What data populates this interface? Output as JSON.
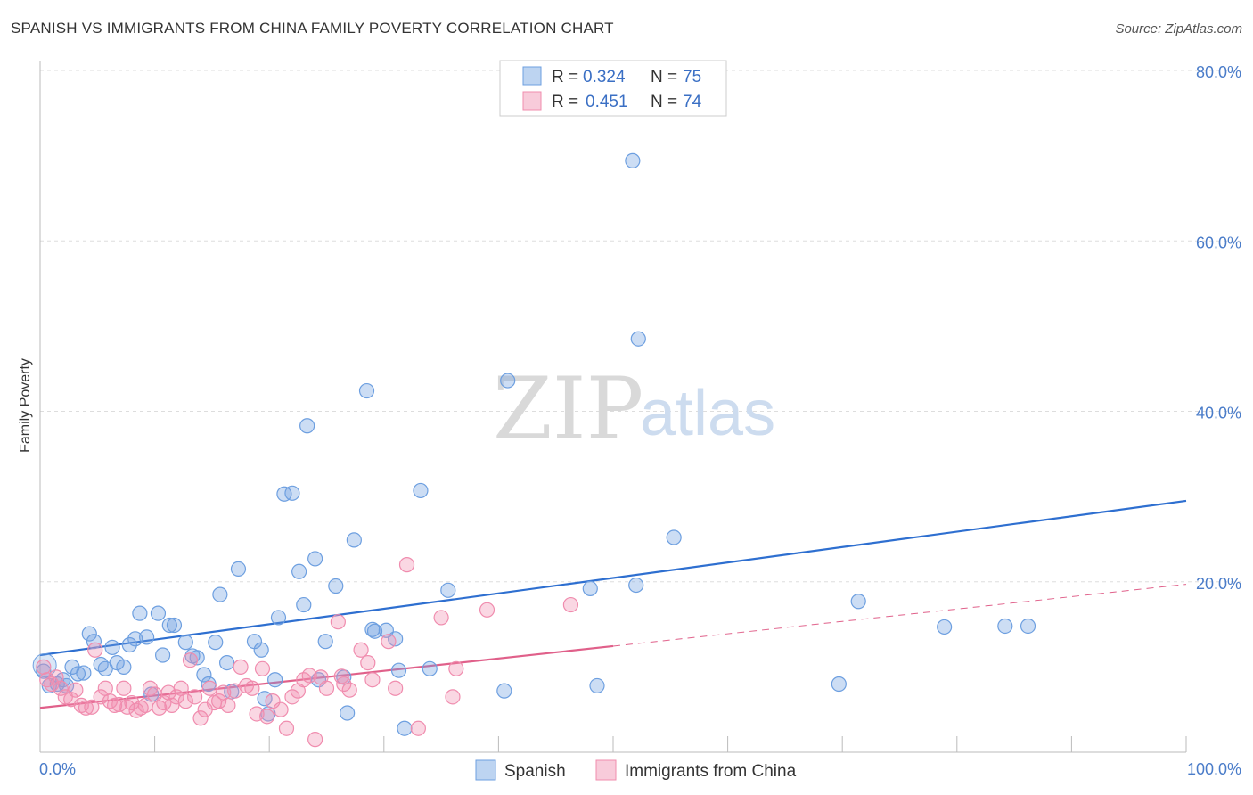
{
  "title": "SPANISH VS IMMIGRANTS FROM CHINA FAMILY POVERTY CORRELATION CHART",
  "source": "Source: ZipAtlas.com",
  "watermark": {
    "zip": "ZIP",
    "atlas": "atlas"
  },
  "colors": {
    "spanish": "#6d9fe0",
    "spanish_line": "#2e6fd0",
    "china": "#f08cae",
    "china_line": "#e0608a",
    "grid": "#dddddd"
  },
  "legend": {
    "r_label": "R =",
    "n_label": "N =",
    "rows": [
      {
        "r": "0.324",
        "n": "75",
        "series": "spanish"
      },
      {
        "r": "0.451",
        "n": "74",
        "series": "china"
      }
    ]
  },
  "chart_data": {
    "type": "scatter",
    "title": "SPANISH VS IMMIGRANTS FROM CHINA FAMILY POVERTY CORRELATION CHART",
    "xlabel": "",
    "ylabel": "Family Poverty",
    "xlim": [
      0,
      100
    ],
    "ylim": [
      0,
      80
    ],
    "x_tick_labels": [
      "0.0%",
      "100.0%"
    ],
    "y_tick_values": [
      20,
      40,
      60,
      80
    ],
    "y_tick_labels": [
      "20.0%",
      "40.0%",
      "60.0%",
      "80.0%"
    ],
    "legend_position": "bottom-center",
    "series": [
      {
        "name": "Spanish",
        "color": "#6d9fe0",
        "trend": {
          "x": [
            0,
            100
          ],
          "y": [
            11.4,
            29.5
          ],
          "dashed_from": null
        },
        "points": [
          [
            0.3,
            9.5
          ],
          [
            0.8,
            7.8
          ],
          [
            1.5,
            8.0
          ],
          [
            2.0,
            8.5
          ],
          [
            2.3,
            7.8
          ],
          [
            2.8,
            10.0
          ],
          [
            3.3,
            9.2
          ],
          [
            3.8,
            9.3
          ],
          [
            4.3,
            13.9
          ],
          [
            4.7,
            13.0
          ],
          [
            5.3,
            10.3
          ],
          [
            5.7,
            9.8
          ],
          [
            6.3,
            12.3
          ],
          [
            6.7,
            10.5
          ],
          [
            7.3,
            10.0
          ],
          [
            7.8,
            12.6
          ],
          [
            8.3,
            13.3
          ],
          [
            8.7,
            16.3
          ],
          [
            9.3,
            13.5
          ],
          [
            9.7,
            6.8
          ],
          [
            10.3,
            16.3
          ],
          [
            10.7,
            11.4
          ],
          [
            11.3,
            14.9
          ],
          [
            11.7,
            14.9
          ],
          [
            12.7,
            12.9
          ],
          [
            13.3,
            11.3
          ],
          [
            13.7,
            11.1
          ],
          [
            14.3,
            9.1
          ],
          [
            14.7,
            8.0
          ],
          [
            15.3,
            12.9
          ],
          [
            15.7,
            18.5
          ],
          [
            16.3,
            10.5
          ],
          [
            16.7,
            7.1
          ],
          [
            17.3,
            21.5
          ],
          [
            18.7,
            13.0
          ],
          [
            19.3,
            12.0
          ],
          [
            19.6,
            6.3
          ],
          [
            19.9,
            4.5
          ],
          [
            20.5,
            8.5
          ],
          [
            20.8,
            15.8
          ],
          [
            21.3,
            30.3
          ],
          [
            22.0,
            30.4
          ],
          [
            22.6,
            21.2
          ],
          [
            23.0,
            17.3
          ],
          [
            23.3,
            38.3
          ],
          [
            24.0,
            22.7
          ],
          [
            24.3,
            8.5
          ],
          [
            24.9,
            13.0
          ],
          [
            25.8,
            19.5
          ],
          [
            26.5,
            8.8
          ],
          [
            26.8,
            4.6
          ],
          [
            27.4,
            24.9
          ],
          [
            28.5,
            42.4
          ],
          [
            29.0,
            14.4
          ],
          [
            29.2,
            14.2
          ],
          [
            31.0,
            13.3
          ],
          [
            31.3,
            9.6
          ],
          [
            31.8,
            2.8
          ],
          [
            33.2,
            30.7
          ],
          [
            34.0,
            9.8
          ],
          [
            35.6,
            19.0
          ],
          [
            40.8,
            43.6
          ],
          [
            40.5,
            7.2
          ],
          [
            48.0,
            19.2
          ],
          [
            48.6,
            7.8
          ],
          [
            51.7,
            69.4
          ],
          [
            52.2,
            48.5
          ],
          [
            52.0,
            19.6
          ],
          [
            55.3,
            25.2
          ],
          [
            69.7,
            8.0
          ],
          [
            71.4,
            17.7
          ],
          [
            78.9,
            14.7
          ],
          [
            84.2,
            14.8
          ],
          [
            86.2,
            14.8
          ],
          [
            30.2,
            14.3
          ]
        ]
      },
      {
        "name": "Immigrants from China",
        "color": "#f08cae",
        "trend": {
          "x": [
            0,
            100
          ],
          "y": [
            5.2,
            19.7
          ],
          "dashed_from": 50
        },
        "points": [
          [
            0.3,
            10.0
          ],
          [
            0.6,
            8.5
          ],
          [
            1.0,
            8.0
          ],
          [
            1.4,
            8.8
          ],
          [
            1.8,
            7.5
          ],
          [
            2.2,
            6.5
          ],
          [
            2.7,
            6.2
          ],
          [
            3.1,
            7.3
          ],
          [
            3.6,
            5.5
          ],
          [
            4.0,
            5.2
          ],
          [
            4.5,
            5.3
          ],
          [
            4.8,
            12.0
          ],
          [
            5.3,
            6.5
          ],
          [
            5.7,
            7.5
          ],
          [
            6.1,
            6.0
          ],
          [
            6.5,
            5.5
          ],
          [
            6.9,
            5.6
          ],
          [
            7.3,
            7.5
          ],
          [
            7.6,
            5.3
          ],
          [
            8.0,
            5.8
          ],
          [
            8.4,
            4.9
          ],
          [
            8.8,
            5.2
          ],
          [
            9.2,
            5.5
          ],
          [
            9.6,
            7.5
          ],
          [
            10.0,
            6.8
          ],
          [
            10.4,
            5.2
          ],
          [
            10.8,
            5.8
          ],
          [
            11.2,
            7.0
          ],
          [
            11.5,
            5.5
          ],
          [
            11.9,
            6.5
          ],
          [
            12.3,
            7.5
          ],
          [
            12.7,
            6.0
          ],
          [
            13.1,
            10.8
          ],
          [
            13.5,
            6.5
          ],
          [
            14.0,
            4.0
          ],
          [
            14.4,
            5.0
          ],
          [
            14.8,
            7.5
          ],
          [
            15.2,
            5.8
          ],
          [
            15.6,
            6.0
          ],
          [
            16.0,
            7.0
          ],
          [
            16.4,
            5.5
          ],
          [
            17.0,
            7.2
          ],
          [
            17.5,
            10.0
          ],
          [
            18.0,
            7.8
          ],
          [
            18.5,
            7.5
          ],
          [
            18.9,
            4.5
          ],
          [
            19.4,
            9.8
          ],
          [
            19.8,
            4.2
          ],
          [
            20.3,
            6.0
          ],
          [
            21.0,
            5.0
          ],
          [
            21.5,
            2.8
          ],
          [
            22.0,
            6.5
          ],
          [
            22.5,
            7.2
          ],
          [
            23.0,
            8.5
          ],
          [
            23.5,
            9.0
          ],
          [
            24.0,
            1.5
          ],
          [
            24.5,
            8.8
          ],
          [
            25.0,
            7.5
          ],
          [
            26.0,
            15.3
          ],
          [
            26.5,
            8.0
          ],
          [
            27.0,
            7.3
          ],
          [
            28.0,
            12.0
          ],
          [
            28.6,
            10.5
          ],
          [
            29.0,
            8.5
          ],
          [
            30.4,
            13.0
          ],
          [
            31.0,
            7.5
          ],
          [
            32.0,
            22.0
          ],
          [
            33.0,
            2.8
          ],
          [
            35.0,
            15.8
          ],
          [
            36.0,
            6.5
          ],
          [
            36.3,
            9.8
          ],
          [
            39.0,
            16.7
          ],
          [
            46.3,
            17.3
          ],
          [
            26.3,
            8.9
          ]
        ]
      }
    ]
  },
  "bottom_legend": [
    {
      "label": "Spanish",
      "series": "spanish"
    },
    {
      "label": "Immigrants from China",
      "series": "china"
    }
  ]
}
